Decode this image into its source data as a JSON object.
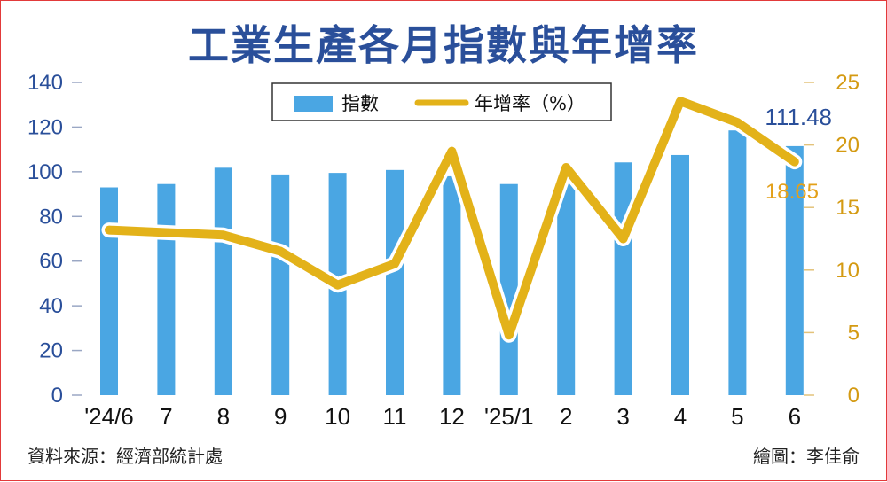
{
  "title": "工業生產各月指數與年增率",
  "source": "資料來源：經濟部統計處",
  "credit": "繪圖：李佳俞",
  "chart_data": {
    "type": "bar",
    "categories": [
      "'24/6",
      "7",
      "8",
      "9",
      "10",
      "11",
      "12",
      "'25/1",
      "2",
      "3",
      "4",
      "5",
      "6"
    ],
    "series": [
      {
        "name": "指數",
        "type": "bar",
        "axis": "left",
        "values": [
          93.0,
          94.5,
          101.8,
          98.8,
          99.5,
          100.8,
          98.0,
          94.5,
          95.0,
          104.2,
          107.5,
          118.5,
          111.48
        ]
      },
      {
        "name": "年增率（%）",
        "type": "line",
        "axis": "right",
        "values": [
          13.2,
          13.0,
          12.8,
          11.5,
          8.8,
          10.5,
          19.5,
          4.8,
          18.2,
          12.5,
          23.5,
          21.8,
          18.65
        ]
      }
    ],
    "y_left": {
      "min": 0,
      "max": 140,
      "ticks": [
        "0",
        "20",
        "40",
        "60",
        "80",
        "100",
        "120",
        "140"
      ]
    },
    "y_right": {
      "min": 0,
      "max": 25,
      "ticks": [
        "0",
        "5",
        "10",
        "15",
        "20",
        "25"
      ]
    },
    "annotations": {
      "last_index": "111.48",
      "last_growth": "18.65"
    },
    "legend_position": "top-center",
    "colors": {
      "bars": "#4aa6e3",
      "line": "#e3b219",
      "line_outline": "#ffffff",
      "left_axis": "#2a4f9a",
      "right_axis": "#d49a12"
    }
  }
}
